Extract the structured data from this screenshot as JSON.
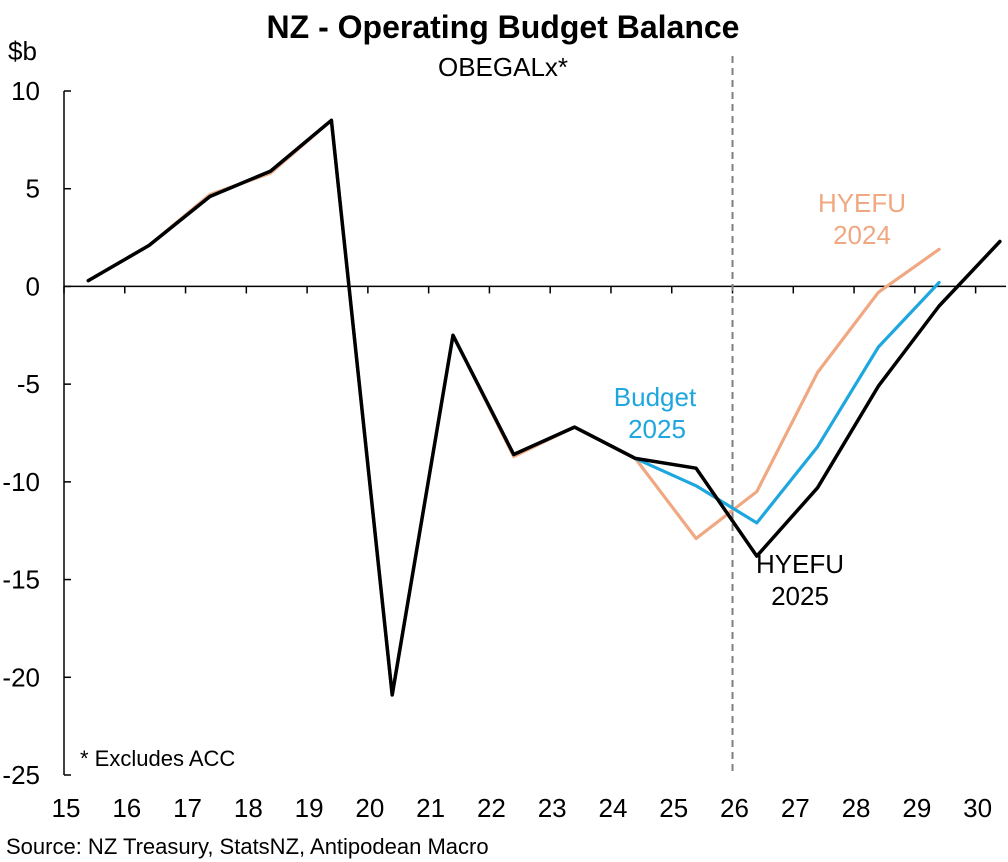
{
  "chart_data": {
    "type": "line",
    "title": "NZ - Operating Budget Balance",
    "subtitle": "OBEGALx*",
    "ylabel": "$b",
    "ylim": [
      -25,
      10
    ],
    "yticks": [
      10,
      5,
      0,
      -5,
      -10,
      -15,
      -20,
      -25
    ],
    "xlim": [
      15,
      30.5
    ],
    "xticks": [
      "15",
      "16",
      "17",
      "18",
      "19",
      "20",
      "21",
      "22",
      "23",
      "24",
      "25",
      "26",
      "27",
      "28",
      "29",
      "30"
    ],
    "forecast_line_x": 26,
    "note": "* Excludes ACC",
    "source": "Source: NZ Treasury, StatsNZ, Antipodean Macro",
    "series": [
      {
        "name": "HYEFU 2024",
        "label_lines": [
          "HYEFU",
          "2024"
        ],
        "color": "#F0A882",
        "x": [
          15.4,
          16.4,
          17.4,
          18.4,
          19.4,
          20.4,
          21.4,
          22.4,
          23.4,
          24.4,
          25.4,
          26.4,
          27.4,
          28.4,
          29.4
        ],
        "y": [
          0.3,
          2.1,
          4.7,
          5.8,
          8.5,
          -20.9,
          -2.5,
          -8.7,
          -7.2,
          -8.8,
          -12.9,
          -10.5,
          -4.4,
          -0.3,
          1.9
        ]
      },
      {
        "name": "Budget 2025",
        "label_lines": [
          "Budget",
          "2025"
        ],
        "color": "#1EA7DE",
        "x": [
          15.4,
          16.4,
          17.4,
          18.4,
          19.4,
          20.4,
          21.4,
          22.4,
          23.4,
          24.4,
          25.4,
          26.4,
          27.4,
          28.4,
          29.4
        ],
        "y": [
          0.3,
          2.1,
          4.6,
          5.9,
          8.5,
          -20.9,
          -2.5,
          -8.6,
          -7.2,
          -8.8,
          -10.2,
          -12.1,
          -8.2,
          -3.1,
          0.2
        ]
      },
      {
        "name": "HYEFU 2025",
        "label_lines": [
          "HYEFU",
          "2025"
        ],
        "color": "#000000",
        "x": [
          15.4,
          16.4,
          17.4,
          18.4,
          19.4,
          20.4,
          21.4,
          22.4,
          23.4,
          24.4,
          25.4,
          26.4,
          27.4,
          28.4,
          29.4,
          30.4
        ],
        "y": [
          0.3,
          2.1,
          4.6,
          5.9,
          8.5,
          -20.9,
          -2.5,
          -8.6,
          -7.2,
          -8.8,
          -9.3,
          -13.8,
          -10.3,
          -5.1,
          -1.0,
          2.3
        ]
      }
    ]
  }
}
